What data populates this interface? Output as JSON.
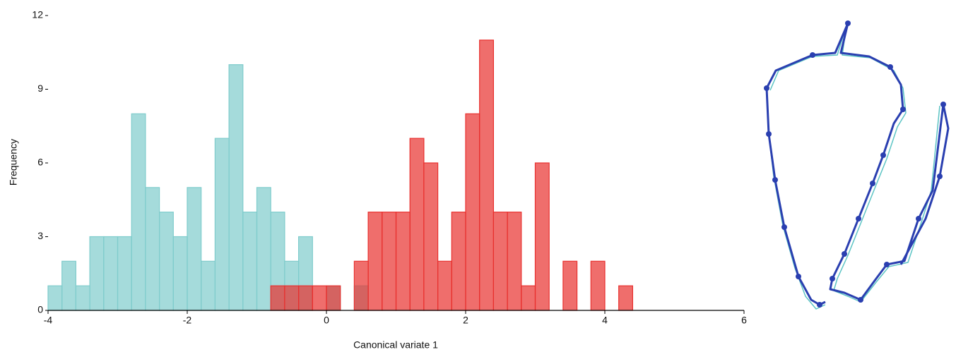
{
  "chart_data": {
    "type": "histogram",
    "xlabel": "Canonical variate 1",
    "ylabel": "Frequency",
    "xlim": [
      -4,
      6
    ],
    "xticks": [
      -4,
      -2,
      0,
      2,
      4,
      6
    ],
    "ylim": [
      0,
      12
    ],
    "yticks": [
      0,
      3,
      6,
      9,
      12
    ],
    "series": [
      {
        "color": "#7fcccc",
        "bins": [
          -4,
          -3.8,
          -3.6,
          -3.4,
          -3.2,
          -3,
          -2.8,
          -2.6,
          -2.4,
          -2.2,
          -2,
          -1.8,
          -1.6,
          -1.4,
          -1.2,
          -1,
          -0.8,
          -0.6,
          -0.4,
          -0.2,
          0,
          0.2,
          0.4,
          0.6
        ],
        "values": [
          1,
          2,
          1,
          3,
          3,
          3,
          8,
          5,
          4,
          3,
          5,
          2,
          7,
          10,
          4,
          5,
          4,
          2,
          3,
          0,
          1,
          0,
          1
        ]
      },
      {
        "color": "#e8302e",
        "bins": [
          -0.8,
          -0.6,
          -0.4,
          -0.2,
          0,
          0.2,
          0.4,
          0.6,
          0.8,
          1,
          1.2,
          1.4,
          1.6,
          1.8,
          2,
          2.2,
          2.4,
          2.6,
          2.8,
          3,
          3.2,
          3.4,
          3.6,
          3.8,
          4,
          4.2,
          4.4
        ],
        "values": [
          1,
          1,
          1,
          1,
          1,
          0,
          2,
          4,
          4,
          4,
          7,
          6,
          2,
          4,
          8,
          11,
          4,
          4,
          1,
          6,
          0,
          2,
          0,
          2,
          0,
          1
        ]
      }
    ]
  }
}
